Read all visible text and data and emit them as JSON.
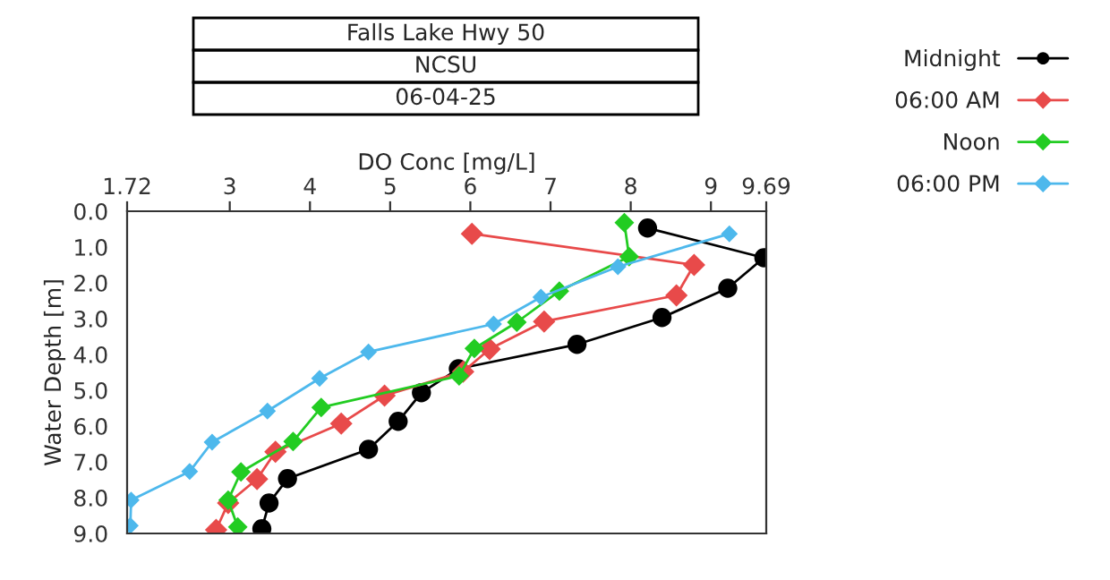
{
  "chart_data": {
    "type": "line",
    "title": "Falls Lake Hwy 50",
    "subtitle": "NCSU",
    "annotations": [
      "06-04-25"
    ],
    "xlabel": "DO Conc [mg/L]",
    "ylabel": "Water Depth [m]",
    "xlim": [
      1.72,
      9.69
    ],
    "xticks": [
      1.72,
      3,
      4,
      5,
      6,
      7,
      8,
      9,
      9.69
    ],
    "ylim": [
      9,
      0
    ],
    "yticks": [
      {
        "value": 0,
        "label": "0.0"
      },
      {
        "value": 1,
        "label": "1.0"
      },
      {
        "value": 2,
        "label": "2.0"
      },
      {
        "value": 3,
        "label": "3.0"
      },
      {
        "value": 4,
        "label": "4.0"
      },
      {
        "value": 5,
        "label": "5.0"
      },
      {
        "value": 6,
        "label": "6.0"
      },
      {
        "value": 7,
        "label": "7.0"
      },
      {
        "value": 8,
        "label": "8.0"
      },
      {
        "value": 9,
        "label": "9.0"
      }
    ],
    "grid": false,
    "legend": "top right",
    "line_style": "solid",
    "series": [
      {
        "name": "Midnight",
        "color": "#000000",
        "marker": "circle",
        "x": [
          8.21,
          9.66,
          9.21,
          8.39,
          7.33,
          5.85,
          5.39,
          5.1,
          4.73,
          3.72,
          3.49,
          3.4
        ],
        "values": [
          0.47,
          1.3,
          2.15,
          2.97,
          3.72,
          4.4,
          5.07,
          5.87,
          6.65,
          7.47,
          8.15,
          8.87
        ]
      },
      {
        "name": "06:00 AM",
        "color": "#e84a4a",
        "marker": "diamond",
        "x": [
          6.02,
          8.79,
          8.57,
          6.92,
          6.24,
          5.91,
          4.93,
          4.39,
          3.57,
          3.34,
          2.98,
          2.83
        ],
        "values": [
          0.63,
          1.5,
          2.35,
          3.08,
          3.85,
          4.48,
          5.15,
          5.93,
          6.72,
          7.48,
          8.15,
          8.9
        ]
      },
      {
        "name": "Noon",
        "color": "#22cc22",
        "marker": "diamond",
        "x": [
          7.92,
          7.98,
          7.11,
          6.58,
          6.05,
          5.86,
          4.14,
          3.79,
          3.14,
          2.98,
          3.1
        ],
        "values": [
          0.32,
          1.27,
          2.23,
          3.1,
          3.83,
          4.6,
          5.48,
          6.43,
          7.28,
          8.07,
          8.82
        ]
      },
      {
        "name": "06:00 PM",
        "color": "#4db8ec",
        "marker": "diamond",
        "x": [
          9.23,
          7.84,
          6.88,
          6.29,
          4.73,
          4.12,
          3.47,
          2.78,
          2.5,
          1.77,
          1.76
        ],
        "values": [
          0.63,
          1.55,
          2.4,
          3.15,
          3.93,
          4.67,
          5.58,
          6.45,
          7.27,
          8.07,
          8.78
        ]
      }
    ]
  }
}
